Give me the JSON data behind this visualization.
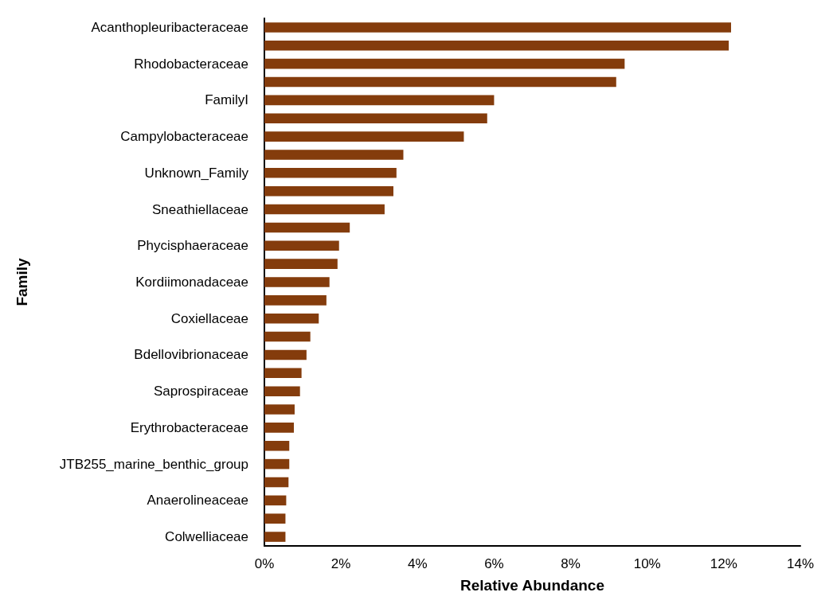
{
  "chart_data": {
    "type": "bar",
    "orientation": "horizontal",
    "xlabel": "Relative Abundance",
    "ylabel": "Family",
    "categories": [
      "Acanthopleuribacteraceae",
      null,
      "Rhodobacteraceae",
      null,
      "FamilyI",
      null,
      "Campylobacteraceae",
      null,
      "Unknown_Family",
      null,
      "Sneathiellaceae",
      null,
      "Phycisphaeraceae",
      null,
      "Kordiimonadaceae",
      null,
      "Coxiellaceae",
      null,
      "Bdellovibrionaceae",
      null,
      "Saprospiraceae",
      null,
      "Erythrobacteraceae",
      null,
      "JTB255_marine_benthic_group",
      null,
      "Anaerolineaceae",
      null,
      "Colwelliaceae"
    ],
    "values": [
      12.19,
      12.13,
      9.41,
      9.19,
      6.0,
      5.82,
      5.21,
      3.63,
      3.45,
      3.37,
      3.14,
      2.23,
      1.95,
      1.91,
      1.7,
      1.62,
      1.42,
      1.2,
      1.1,
      0.97,
      0.93,
      0.79,
      0.77,
      0.65,
      0.65,
      0.63,
      0.57,
      0.55,
      0.55
    ],
    "color": "#843c0c",
    "xlim": [
      0,
      14
    ],
    "xticks": [
      {
        "value": 0,
        "label": "0%"
      },
      {
        "value": 2,
        "label": "2%"
      },
      {
        "value": 4,
        "label": "4%"
      },
      {
        "value": 6,
        "label": "6%"
      },
      {
        "value": 8,
        "label": "8%"
      },
      {
        "value": 10,
        "label": "10%"
      },
      {
        "value": 12,
        "label": "12%"
      },
      {
        "value": 14,
        "label": "14%"
      }
    ],
    "grid": false
  }
}
